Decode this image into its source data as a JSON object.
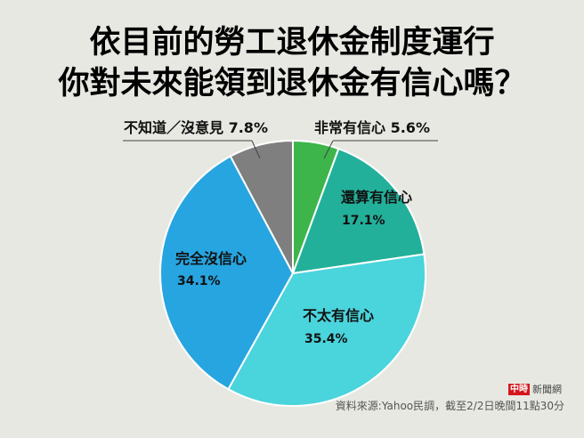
{
  "title": {
    "line1": "依目前的勞工退休金制度運行",
    "line2": "你對未來能領到退休金有信心嗎？"
  },
  "chart_data": {
    "type": "pie",
    "title": "依目前的勞工退休金制度運行 你對未來能領到退休金有信心嗎？",
    "categories": [
      "非常有信心",
      "還算有信心",
      "不太有信心",
      "完全沒信心",
      "不知道／沒意見"
    ],
    "values": [
      5.6,
      17.1,
      35.4,
      34.1,
      7.8
    ],
    "unit": "%",
    "colors": [
      "#3db54a",
      "#22b09a",
      "#4ad4dc",
      "#27a5e0",
      "#7f7f7f"
    ],
    "start_angle": "12 o'clock, clockwise",
    "legend": "none (direct labels)"
  },
  "labels": {
    "very_confident": {
      "name": "非常有信心",
      "pct": "5.6%"
    },
    "fairly_confident": {
      "name": "還算有信心",
      "pct": "17.1%"
    },
    "not_very_confident": {
      "name": "不太有信心",
      "pct": "35.4%"
    },
    "no_confidence": {
      "name": "完全沒信心",
      "pct": "34.1%"
    },
    "dont_know": {
      "name": "不知道／沒意見",
      "pct": "7.8%"
    }
  },
  "footer": {
    "logo_badge": "中時",
    "logo_text": "新聞網",
    "source": "資料來源:Yahoo民調，截至2/2日晚間11點30分"
  }
}
